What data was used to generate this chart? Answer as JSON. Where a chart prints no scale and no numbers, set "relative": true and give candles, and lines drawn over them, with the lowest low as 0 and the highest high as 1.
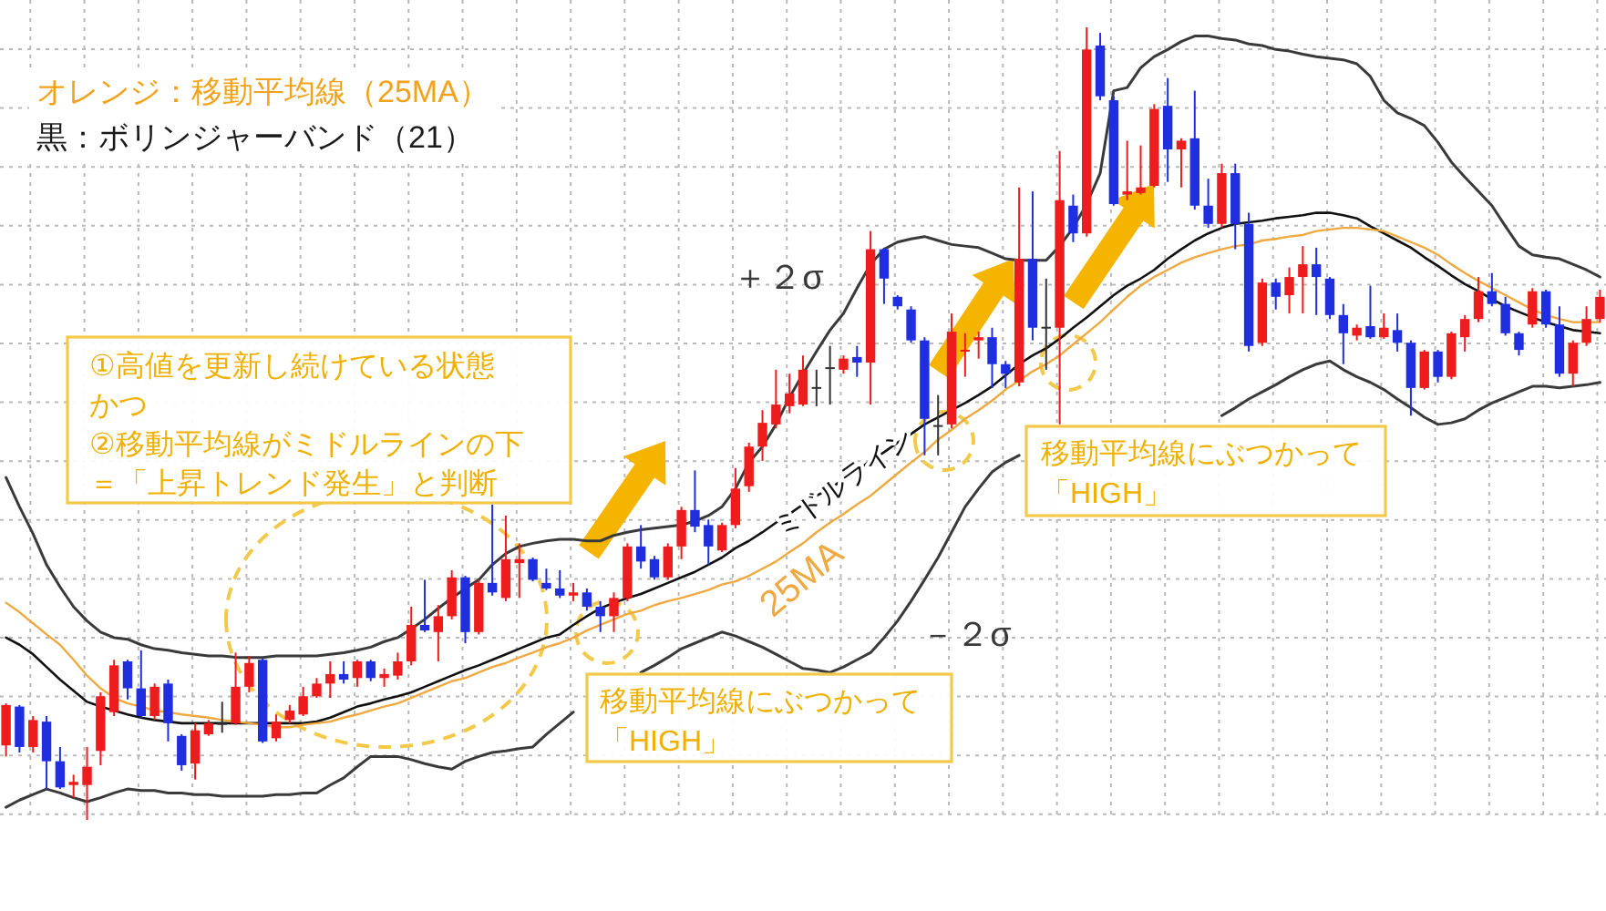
{
  "chart_data": {
    "type": "candlestick",
    "relative": true,
    "grid": true,
    "categories": [
      null,
      null,
      null,
      null,
      null,
      null,
      null,
      null,
      null,
      null,
      null,
      null,
      null,
      null,
      null,
      null,
      null,
      null,
      null,
      null,
      null,
      null,
      null,
      null,
      null,
      null,
      null,
      null,
      null,
      null,
      null,
      null,
      null,
      null,
      null,
      null,
      null,
      null,
      null,
      null,
      null,
      null,
      null,
      null,
      null,
      null,
      null,
      null,
      null,
      null,
      null,
      null,
      null,
      null,
      null,
      null,
      null,
      null,
      null,
      null,
      null,
      null,
      null,
      null,
      null,
      null,
      null,
      null,
      null,
      null,
      null,
      null,
      null,
      null,
      null,
      null,
      null,
      null,
      null,
      null,
      null,
      null,
      null,
      null,
      null,
      null,
      null,
      null,
      null,
      null,
      null,
      null,
      null,
      null,
      null,
      null,
      null,
      null,
      null,
      null,
      null,
      null,
      null,
      null,
      null,
      null,
      null,
      null,
      null,
      null,
      null,
      null,
      null,
      null,
      null,
      null,
      null,
      null,
      null
    ],
    "ohlc": [
      [
        0.094,
        0.147,
        0.08,
        0.145
      ],
      [
        0.143,
        0.145,
        0.085,
        0.092
      ],
      [
        0.092,
        0.131,
        0.085,
        0.126
      ],
      [
        0.124,
        0.131,
        0.039,
        0.074
      ],
      [
        0.074,
        0.092,
        0.039,
        0.041
      ],
      [
        0.044,
        0.057,
        0.028,
        0.048
      ],
      [
        0.044,
        0.092,
        0,
        0.067
      ],
      [
        0.087,
        0.161,
        0.069,
        0.156
      ],
      [
        0.136,
        0.202,
        0.131,
        0.195
      ],
      [
        0.2,
        0.202,
        0.152,
        0.166
      ],
      [
        0.166,
        0.214,
        0.129,
        0.131
      ],
      [
        0.131,
        0.172,
        0.126,
        0.168
      ],
      [
        0.172,
        0.177,
        0.099,
        0.122
      ],
      [
        0.106,
        0.108,
        0.062,
        0.069
      ],
      [
        0.071,
        0.122,
        0.051,
        0.113
      ],
      [
        0.108,
        0.126,
        0.106,
        0.122
      ],
      [
        0.12,
        0.149,
        0.11,
        0.122
      ],
      [
        0.122,
        0.211,
        0.12,
        0.168
      ],
      [
        0.168,
        0.207,
        0.161,
        0.198
      ],
      [
        0.202,
        0.204,
        0.097,
        0.099
      ],
      [
        0.103,
        0.133,
        0.099,
        0.124
      ],
      [
        0.126,
        0.145,
        0.122,
        0.138
      ],
      [
        0.133,
        0.168,
        0.131,
        0.156
      ],
      [
        0.156,
        0.179,
        0.154,
        0.172
      ],
      [
        0.172,
        0.2,
        0.154,
        0.184
      ],
      [
        0.184,
        0.2,
        0.172,
        0.177
      ],
      [
        0.179,
        0.202,
        0.168,
        0.2
      ],
      [
        0.2,
        0.202,
        0.175,
        0.179
      ],
      [
        0.179,
        0.191,
        0.168,
        0.184
      ],
      [
        0.182,
        0.211,
        0.177,
        0.2
      ],
      [
        0.2,
        0.269,
        0.195,
        0.246
      ],
      [
        0.246,
        0.303,
        0.237,
        0.239
      ],
      [
        0.237,
        0.271,
        0.2,
        0.257
      ],
      [
        0.257,
        0.315,
        0.253,
        0.306
      ],
      [
        0.306,
        0.308,
        0.223,
        0.237
      ],
      [
        0.237,
        0.303,
        0.234,
        0.299
      ],
      [
        0.299,
        0.398,
        0.283,
        0.287
      ],
      [
        0.28,
        0.384,
        0.276,
        0.329
      ],
      [
        0.324,
        0.349,
        0.28,
        0.329
      ],
      [
        0.329,
        0.331,
        0.301,
        0.303
      ],
      [
        0.299,
        0.317,
        0.29,
        0.292
      ],
      [
        0.292,
        0.315,
        0.28,
        0.283
      ],
      [
        0.283,
        0.299,
        0.276,
        0.287
      ],
      [
        0.287,
        0.292,
        0.264,
        0.269
      ],
      [
        0.269,
        0.276,
        0.237,
        0.257
      ],
      [
        0.257,
        0.287,
        0.237,
        0.28
      ],
      [
        0.28,
        0.349,
        0.276,
        0.345
      ],
      [
        0.345,
        0.372,
        0.317,
        0.326
      ],
      [
        0.329,
        0.333,
        0.303,
        0.306
      ],
      [
        0.306,
        0.349,
        0.303,
        0.345
      ],
      [
        0.345,
        0.395,
        0.329,
        0.391
      ],
      [
        0.391,
        0.441,
        0.363,
        0.37
      ],
      [
        0.372,
        0.379,
        0.322,
        0.345
      ],
      [
        0.34,
        0.375,
        0.338,
        0.372
      ],
      [
        0.372,
        0.444,
        0.368,
        0.418
      ],
      [
        0.421,
        0.476,
        0.414,
        0.471
      ],
      [
        0.471,
        0.517,
        0.453,
        0.501
      ],
      [
        0.499,
        0.568,
        0.494,
        0.524
      ],
      [
        0.522,
        0.563,
        0.513,
        0.538
      ],
      [
        0.524,
        0.586,
        0.522,
        0.568
      ],
      [
        0.545,
        0.568,
        0.522,
        0.545
      ],
      [
        0.57,
        0.598,
        0.524,
        0.57
      ],
      [
        0.568,
        0.586,
        0.563,
        0.582
      ],
      [
        0.584,
        0.598,
        0.559,
        0.577
      ],
      [
        0.577,
        0.743,
        0.524,
        0.72
      ],
      [
        0.72,
        0.722,
        0.651,
        0.683
      ],
      [
        0.66,
        0.662,
        0.644,
        0.648
      ],
      [
        0.644,
        0.648,
        0.602,
        0.605
      ],
      [
        0.605,
        0.609,
        0.46,
        0.506
      ],
      [
        0.497,
        0.536,
        0.46,
        0.497
      ],
      [
        0.499,
        0.639,
        0.494,
        0.616
      ],
      [
        0.591,
        0.614,
        0.559,
        0.593
      ],
      [
        0.605,
        0.616,
        0.582,
        0.609
      ],
      [
        0.609,
        0.621,
        0.545,
        0.575
      ],
      [
        0.575,
        0.579,
        0.545,
        0.563
      ],
      [
        0.552,
        0.798,
        0.547,
        0.708
      ],
      [
        0.708,
        0.793,
        0.605,
        0.621
      ],
      [
        0.621,
        0.683,
        0.568,
        0.621
      ],
      [
        0.621,
        0.844,
        0.499,
        0.782
      ],
      [
        0.775,
        0.789,
        0.729,
        0.74
      ],
      [
        0.74,
        1,
        0.736,
        0.972
      ],
      [
        0.977,
        0.993,
        0.908,
        0.913
      ],
      [
        0.908,
        0.913,
        0.775,
        0.777
      ],
      [
        0.789,
        0.857,
        0.782,
        0.793
      ],
      [
        0.791,
        0.851,
        0.789,
        0.798
      ],
      [
        0.8,
        0.903,
        0.798,
        0.897
      ],
      [
        0.901,
        0.936,
        0.805,
        0.846
      ],
      [
        0.846,
        0.86,
        0.798,
        0.857
      ],
      [
        0.86,
        0.92,
        0.77,
        0.775
      ],
      [
        0.775,
        0.809,
        0.747,
        0.752
      ],
      [
        0.752,
        0.828,
        0.747,
        0.816
      ],
      [
        0.816,
        0.828,
        0.72,
        0.752
      ],
      [
        0.752,
        0.766,
        0.591,
        0.598
      ],
      [
        0.602,
        0.683,
        0.598,
        0.678
      ],
      [
        0.678,
        0.683,
        0.644,
        0.66
      ],
      [
        0.662,
        0.697,
        0.639,
        0.685
      ],
      [
        0.685,
        0.724,
        0.639,
        0.701
      ],
      [
        0.701,
        0.722,
        0.637,
        0.685
      ],
      [
        0.683,
        0.685,
        0.632,
        0.637
      ],
      [
        0.637,
        0.651,
        0.575,
        0.614
      ],
      [
        0.611,
        0.625,
        0.605,
        0.621
      ],
      [
        0.623,
        0.674,
        0.607,
        0.609
      ],
      [
        0.609,
        0.639,
        0.607,
        0.621
      ],
      [
        0.618,
        0.639,
        0.591,
        0.602
      ],
      [
        0.602,
        0.605,
        0.51,
        0.545
      ],
      [
        0.545,
        0.593,
        0.543,
        0.591
      ],
      [
        0.591,
        0.593,
        0.552,
        0.559
      ],
      [
        0.559,
        0.616,
        0.556,
        0.614
      ],
      [
        0.609,
        0.637,
        0.591,
        0.632
      ],
      [
        0.632,
        0.685,
        0.628,
        0.667
      ],
      [
        0.667,
        0.69,
        0.648,
        0.651
      ],
      [
        0.651,
        0.66,
        0.611,
        0.614
      ],
      [
        0.614,
        0.616,
        0.586,
        0.593
      ],
      [
        0.625,
        0.671,
        0.621,
        0.667
      ],
      [
        0.667,
        0.669,
        0.621,
        0.625
      ],
      [
        0.625,
        0.648,
        0.559,
        0.563
      ],
      [
        0.563,
        0.605,
        0.547,
        0.602
      ],
      [
        0.602,
        0.648,
        0.598,
        0.632
      ],
      [
        0.632,
        0.669,
        0.628,
        0.66
      ]
    ],
    "colors": [
      "#ee1c1c",
      "#1f2fe0",
      "#ee1c1c",
      "#1f2fe0",
      "#1f2fe0",
      "#ee1c1c",
      "#ee1c1c",
      "#ee1c1c",
      "#ee1c1c",
      "#1f2fe0",
      "#1f2fe0",
      "#ee1c1c",
      "#1f2fe0",
      "#1f2fe0",
      "#ee1c1c",
      "#ee1c1c",
      "#333333",
      "#ee1c1c",
      "#ee1c1c",
      "#1f2fe0",
      "#ee1c1c",
      "#ee1c1c",
      "#ee1c1c",
      "#ee1c1c",
      "#ee1c1c",
      "#1f2fe0",
      "#ee1c1c",
      "#1f2fe0",
      "#ee1c1c",
      "#ee1c1c",
      "#ee1c1c",
      "#1f2fe0",
      "#ee1c1c",
      "#ee1c1c",
      "#1f2fe0",
      "#ee1c1c",
      "#1f2fe0",
      "#ee1c1c",
      "#ee1c1c",
      "#1f2fe0",
      "#1f2fe0",
      "#1f2fe0",
      "#ee1c1c",
      "#1f2fe0",
      "#1f2fe0",
      "#ee1c1c",
      "#ee1c1c",
      "#1f2fe0",
      "#1f2fe0",
      "#ee1c1c",
      "#ee1c1c",
      "#1f2fe0",
      "#1f2fe0",
      "#ee1c1c",
      "#ee1c1c",
      "#ee1c1c",
      "#ee1c1c",
      "#ee1c1c",
      "#ee1c1c",
      "#ee1c1c",
      "#333333",
      "#333333",
      "#ee1c1c",
      "#1f2fe0",
      "#ee1c1c",
      "#1f2fe0",
      "#1f2fe0",
      "#1f2fe0",
      "#1f2fe0",
      "#333333",
      "#ee1c1c",
      "#ee1c1c",
      "#ee1c1c",
      "#1f2fe0",
      "#1f2fe0",
      "#ee1c1c",
      "#1f2fe0",
      "#333333",
      "#ee1c1c",
      "#1f2fe0",
      "#ee1c1c",
      "#1f2fe0",
      "#1f2fe0",
      "#ee1c1c",
      "#ee1c1c",
      "#ee1c1c",
      "#1f2fe0",
      "#ee1c1c",
      "#1f2fe0",
      "#1f2fe0",
      "#ee1c1c",
      "#1f2fe0",
      "#1f2fe0",
      "#ee1c1c",
      "#1f2fe0",
      "#ee1c1c",
      "#ee1c1c",
      "#1f2fe0",
      "#1f2fe0",
      "#1f2fe0",
      "#ee1c1c",
      "#1f2fe0",
      "#ee1c1c",
      "#1f2fe0",
      "#1f2fe0",
      "#ee1c1c",
      "#1f2fe0",
      "#ee1c1c",
      "#ee1c1c",
      "#ee1c1c",
      "#1f2fe0",
      "#1f2fe0",
      "#1f2fe0",
      "#ee1c1c",
      "#1f2fe0",
      "#1f2fe0",
      "#ee1c1c",
      "#ee1c1c",
      "#ee1c1c"
    ],
    "series": [
      {
        "type": "line",
        "name": "＋２σ",
        "color": "#3a3a3a",
        "values": [
          0.432,
          0.395,
          0.361,
          0.322,
          0.294,
          0.269,
          0.251,
          0.237,
          0.23,
          0.228,
          0.221,
          0.216,
          0.214,
          0.211,
          0.209,
          0.207,
          0.207,
          0.205,
          0.205,
          0.205,
          0.207,
          0.207,
          0.207,
          0.207,
          0.209,
          0.211,
          0.214,
          0.218,
          0.225,
          0.23,
          0.241,
          0.253,
          0.267,
          0.28,
          0.292,
          0.303,
          0.322,
          0.336,
          0.345,
          0.349,
          0.352,
          0.354,
          0.354,
          0.352,
          0.352,
          0.359,
          0.363,
          0.366,
          0.368,
          0.37,
          0.372,
          0.377,
          0.384,
          0.395,
          0.418,
          0.451,
          0.471,
          0.499,
          0.533,
          0.563,
          0.591,
          0.618,
          0.639,
          0.671,
          0.701,
          0.72,
          0.729,
          0.733,
          0.736,
          0.731,
          0.726,
          0.724,
          0.722,
          0.715,
          0.708,
          0.706,
          0.706,
          0.706,
          0.724,
          0.747,
          0.777,
          0.816,
          0.92,
          0.924,
          0.949,
          0.963,
          0.972,
          0.982,
          0.989,
          0.989,
          0.986,
          0.984,
          0.979,
          0.977,
          0.972,
          0.97,
          0.966,
          0.963,
          0.961,
          0.959,
          0.954,
          0.938,
          0.908,
          0.892,
          0.885,
          0.876,
          0.855,
          0.83,
          0.811,
          0.793,
          0.775,
          0.749,
          0.724,
          0.713,
          0.71,
          0.708,
          0.701,
          0.694,
          0.685
        ]
      },
      {
        "type": "line",
        "name": "ミドルライン",
        "color": "#111111",
        "values": [
          0.23,
          0.221,
          0.209,
          0.193,
          0.177,
          0.163,
          0.149,
          0.143,
          0.138,
          0.133,
          0.129,
          0.126,
          0.124,
          0.122,
          0.122,
          0.122,
          0.122,
          0.122,
          0.122,
          0.122,
          0.122,
          0.122,
          0.122,
          0.124,
          0.129,
          0.136,
          0.143,
          0.147,
          0.152,
          0.156,
          0.161,
          0.168,
          0.175,
          0.182,
          0.189,
          0.195,
          0.202,
          0.209,
          0.216,
          0.223,
          0.23,
          0.234,
          0.246,
          0.257,
          0.267,
          0.274,
          0.28,
          0.285,
          0.292,
          0.299,
          0.306,
          0.313,
          0.322,
          0.331,
          0.343,
          0.352,
          0.363,
          0.375,
          0.386,
          0.398,
          0.409,
          0.418,
          0.43,
          0.441,
          0.453,
          0.464,
          0.476,
          0.487,
          0.499,
          0.508,
          0.517,
          0.526,
          0.536,
          0.547,
          0.561,
          0.575,
          0.586,
          0.595,
          0.607,
          0.621,
          0.634,
          0.648,
          0.662,
          0.674,
          0.683,
          0.694,
          0.708,
          0.72,
          0.731,
          0.74,
          0.747,
          0.752,
          0.754,
          0.756,
          0.759,
          0.761,
          0.763,
          0.766,
          0.766,
          0.763,
          0.759,
          0.749,
          0.74,
          0.731,
          0.722,
          0.71,
          0.699,
          0.687,
          0.676,
          0.667,
          0.657,
          0.648,
          0.641,
          0.634,
          0.628,
          0.623,
          0.618,
          0.616,
          0.614
        ]
      },
      {
        "type": "line",
        "name": "25MA",
        "color": "#f0a840",
        "values": [
          0.274,
          0.262,
          0.248,
          0.234,
          0.221,
          0.202,
          0.182,
          0.166,
          0.154,
          0.147,
          0.143,
          0.138,
          0.136,
          0.133,
          0.131,
          0.129,
          0.126,
          0.124,
          0.122,
          0.12,
          0.117,
          0.117,
          0.12,
          0.122,
          0.124,
          0.129,
          0.133,
          0.138,
          0.143,
          0.147,
          0.154,
          0.161,
          0.168,
          0.175,
          0.179,
          0.186,
          0.193,
          0.198,
          0.205,
          0.211,
          0.218,
          0.223,
          0.23,
          0.239,
          0.246,
          0.253,
          0.26,
          0.264,
          0.271,
          0.276,
          0.28,
          0.285,
          0.29,
          0.297,
          0.301,
          0.308,
          0.317,
          0.326,
          0.338,
          0.349,
          0.363,
          0.375,
          0.386,
          0.398,
          0.409,
          0.423,
          0.437,
          0.451,
          0.464,
          0.48,
          0.492,
          0.506,
          0.517,
          0.529,
          0.543,
          0.554,
          0.566,
          0.575,
          0.586,
          0.6,
          0.614,
          0.628,
          0.644,
          0.66,
          0.674,
          0.685,
          0.694,
          0.703,
          0.71,
          0.715,
          0.72,
          0.724,
          0.726,
          0.731,
          0.733,
          0.736,
          0.738,
          0.743,
          0.745,
          0.747,
          0.747,
          0.745,
          0.743,
          0.736,
          0.729,
          0.722,
          0.713,
          0.701,
          0.69,
          0.68,
          0.671,
          0.662,
          0.653,
          0.644,
          0.637,
          0.632,
          0.628,
          0.628,
          0.628
        ]
      },
      {
        "type": "line",
        "name": "－２σ",
        "color": "#3a3a3a",
        "values": [
          0.016,
          0.025,
          0.032,
          0.039,
          0.034,
          0.028,
          0.023,
          0.028,
          0.034,
          0.039,
          0.037,
          0.037,
          0.034,
          0.034,
          0.032,
          0.032,
          0.03,
          0.03,
          0.03,
          0.03,
          0.032,
          0.032,
          0.034,
          0.034,
          0.044,
          0.053,
          0.067,
          0.08,
          0.08,
          0.08,
          0.076,
          0.071,
          0.067,
          0.064,
          0.074,
          0.08,
          0.085,
          0.087,
          0.09,
          0.092,
          0.108,
          0.122,
          0.136,
          null,
          null,
          null,
          null,
          0.186,
          0.195,
          0.205,
          0.216,
          0.223,
          0.23,
          0.237,
          0.232,
          0.225,
          0.218,
          0.209,
          0.2,
          0.191,
          0.189,
          0.186,
          0.193,
          0.202,
          0.211,
          0.23,
          0.251,
          0.276,
          0.303,
          0.331,
          0.363,
          0.395,
          0.418,
          0.439,
          0.451,
          0.46,
          null,
          null,
          null,
          null,
          null,
          null,
          null,
          null,
          null,
          null,
          null,
          null,
          null,
          null,
          0.51,
          0.52,
          0.531,
          0.54,
          0.549,
          0.559,
          0.568,
          0.575,
          0.579,
          0.568,
          0.559,
          0.552,
          0.543,
          0.531,
          0.52,
          0.508,
          0.499,
          0.501,
          0.506,
          0.517,
          0.526,
          0.533,
          0.54,
          0.547,
          0.547,
          0.545,
          0.547,
          0.549,
          0.552
        ]
      }
    ],
    "annotations": [
      "オレンジ：移動平均線（25MA）",
      "黒：ボリンジャーバンド（21）",
      "①高値を更新し続けている状態かつ②移動平均線がミドルラインの下＝「上昇トレンド発生」と判断",
      "移動平均線にぶつかって「HIGH」",
      "移動平均線にぶつかって「HIGH」"
    ]
  }
}
